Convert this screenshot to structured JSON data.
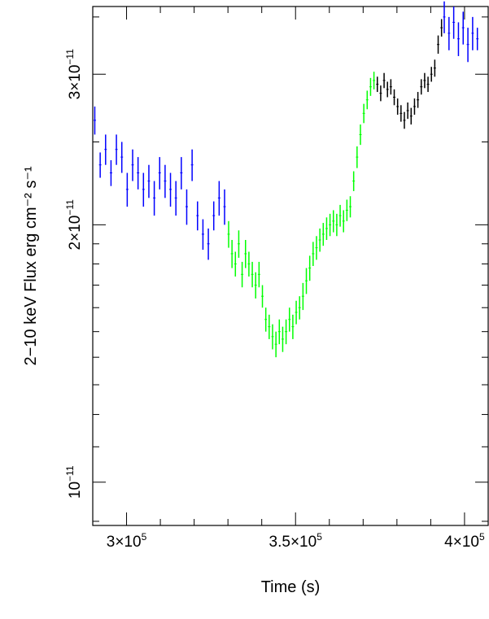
{
  "chart_data": {
    "type": "scatter",
    "title": "",
    "xlabel": "Time (s)",
    "ylabel": "2−10 keV Flux erg cm⁻² s⁻¹",
    "xlim": [
      290000,
      407000
    ],
    "ylim": [
      0.89,
      3.6
    ],
    "y_units": "1e-11 erg cm^-2 s^-1",
    "x_ticks": [
      {
        "value": 300000,
        "mantissa": "3×10",
        "exp": "5"
      },
      {
        "value": 350000,
        "mantissa": "3.5×10",
        "exp": "5"
      },
      {
        "value": 400000,
        "mantissa": "4×10",
        "exp": "5"
      }
    ],
    "y_ticks": [
      {
        "value": 1,
        "mantissa": "10",
        "exp": "−11"
      },
      {
        "value": 2,
        "mantissa": "2×10",
        "exp": "−11"
      },
      {
        "value": 3,
        "mantissa": "3×10",
        "exp": "−11"
      }
    ],
    "series": [
      {
        "color": "#0000ff",
        "points": [
          [
            290600,
            2.65,
            0.1
          ],
          [
            292200,
            2.35,
            0.08
          ],
          [
            293800,
            2.45,
            0.1
          ],
          [
            295400,
            2.3,
            0.08
          ],
          [
            297000,
            2.45,
            0.1
          ],
          [
            298600,
            2.4,
            0.1
          ],
          [
            300200,
            2.2,
            0.1
          ],
          [
            301800,
            2.35,
            0.1
          ],
          [
            303400,
            2.3,
            0.1
          ],
          [
            305000,
            2.2,
            0.1
          ],
          [
            306600,
            2.25,
            0.1
          ],
          [
            308200,
            2.15,
            0.1
          ],
          [
            309800,
            2.3,
            0.1
          ],
          [
            311400,
            2.25,
            0.1
          ],
          [
            313000,
            2.2,
            0.1
          ],
          [
            314600,
            2.15,
            0.1
          ],
          [
            316200,
            2.3,
            0.1
          ],
          [
            317800,
            2.1,
            0.1
          ],
          [
            319400,
            2.35,
            0.1
          ],
          [
            321000,
            2.05,
            0.08
          ],
          [
            322600,
            1.95,
            0.08
          ],
          [
            324200,
            1.9,
            0.08
          ],
          [
            325800,
            2.05,
            0.08
          ],
          [
            327400,
            2.15,
            0.1
          ],
          [
            329000,
            2.1,
            0.1
          ],
          [
            394000,
            3.5,
            0.15
          ],
          [
            395400,
            3.35,
            0.15
          ],
          [
            396800,
            3.45,
            0.15
          ],
          [
            398200,
            3.3,
            0.15
          ],
          [
            399600,
            3.4,
            0.15
          ],
          [
            401000,
            3.25,
            0.15
          ],
          [
            402400,
            3.35,
            0.15
          ],
          [
            403800,
            3.3,
            0.1
          ]
        ]
      },
      {
        "color": "#00ff00",
        "points": [
          [
            330200,
            1.95,
            0.07
          ],
          [
            331200,
            1.85,
            0.07
          ],
          [
            332200,
            1.8,
            0.06
          ],
          [
            333200,
            1.9,
            0.07
          ],
          [
            334200,
            1.75,
            0.06
          ],
          [
            335200,
            1.85,
            0.07
          ],
          [
            336200,
            1.8,
            0.06
          ],
          [
            337200,
            1.75,
            0.06
          ],
          [
            338200,
            1.7,
            0.06
          ],
          [
            339200,
            1.75,
            0.06
          ],
          [
            340200,
            1.65,
            0.05
          ],
          [
            341200,
            1.55,
            0.05
          ],
          [
            342200,
            1.52,
            0.05
          ],
          [
            343200,
            1.48,
            0.05
          ],
          [
            344200,
            1.45,
            0.05
          ],
          [
            345200,
            1.5,
            0.05
          ],
          [
            346200,
            1.47,
            0.05
          ],
          [
            347200,
            1.5,
            0.05
          ],
          [
            348200,
            1.55,
            0.05
          ],
          [
            349200,
            1.52,
            0.05
          ],
          [
            350200,
            1.58,
            0.05
          ],
          [
            351200,
            1.6,
            0.05
          ],
          [
            352200,
            1.65,
            0.06
          ],
          [
            353200,
            1.72,
            0.06
          ],
          [
            354200,
            1.78,
            0.06
          ],
          [
            355200,
            1.85,
            0.06
          ],
          [
            356200,
            1.88,
            0.06
          ],
          [
            357200,
            1.92,
            0.06
          ],
          [
            358200,
            1.95,
            0.06
          ],
          [
            359200,
            1.98,
            0.06
          ],
          [
            360200,
            2.0,
            0.06
          ],
          [
            361200,
            2.02,
            0.06
          ],
          [
            362200,
            2.0,
            0.06
          ],
          [
            363200,
            2.05,
            0.06
          ],
          [
            364200,
            2.02,
            0.06
          ],
          [
            365200,
            2.08,
            0.06
          ],
          [
            366200,
            2.1,
            0.06
          ],
          [
            367200,
            2.25,
            0.06
          ],
          [
            368200,
            2.4,
            0.07
          ],
          [
            369200,
            2.55,
            0.07
          ],
          [
            370200,
            2.7,
            0.07
          ],
          [
            371200,
            2.8,
            0.07
          ],
          [
            372200,
            2.9,
            0.07
          ],
          [
            373200,
            2.95,
            0.07
          ]
        ]
      },
      {
        "color": "#000000",
        "points": [
          [
            374200,
            2.92,
            0.06
          ],
          [
            375200,
            2.85,
            0.06
          ],
          [
            376200,
            2.95,
            0.06
          ],
          [
            377200,
            2.88,
            0.06
          ],
          [
            378200,
            2.9,
            0.06
          ],
          [
            379200,
            2.82,
            0.06
          ],
          [
            380200,
            2.75,
            0.06
          ],
          [
            381200,
            2.7,
            0.06
          ],
          [
            382200,
            2.65,
            0.06
          ],
          [
            383200,
            2.72,
            0.06
          ],
          [
            384200,
            2.68,
            0.06
          ],
          [
            385200,
            2.75,
            0.06
          ],
          [
            386200,
            2.8,
            0.06
          ],
          [
            387200,
            2.9,
            0.06
          ],
          [
            388200,
            2.95,
            0.06
          ],
          [
            389200,
            2.92,
            0.06
          ],
          [
            390200,
            3.0,
            0.06
          ],
          [
            391200,
            3.05,
            0.07
          ],
          [
            392200,
            3.25,
            0.08
          ],
          [
            393200,
            3.4,
            0.08
          ]
        ]
      }
    ]
  }
}
